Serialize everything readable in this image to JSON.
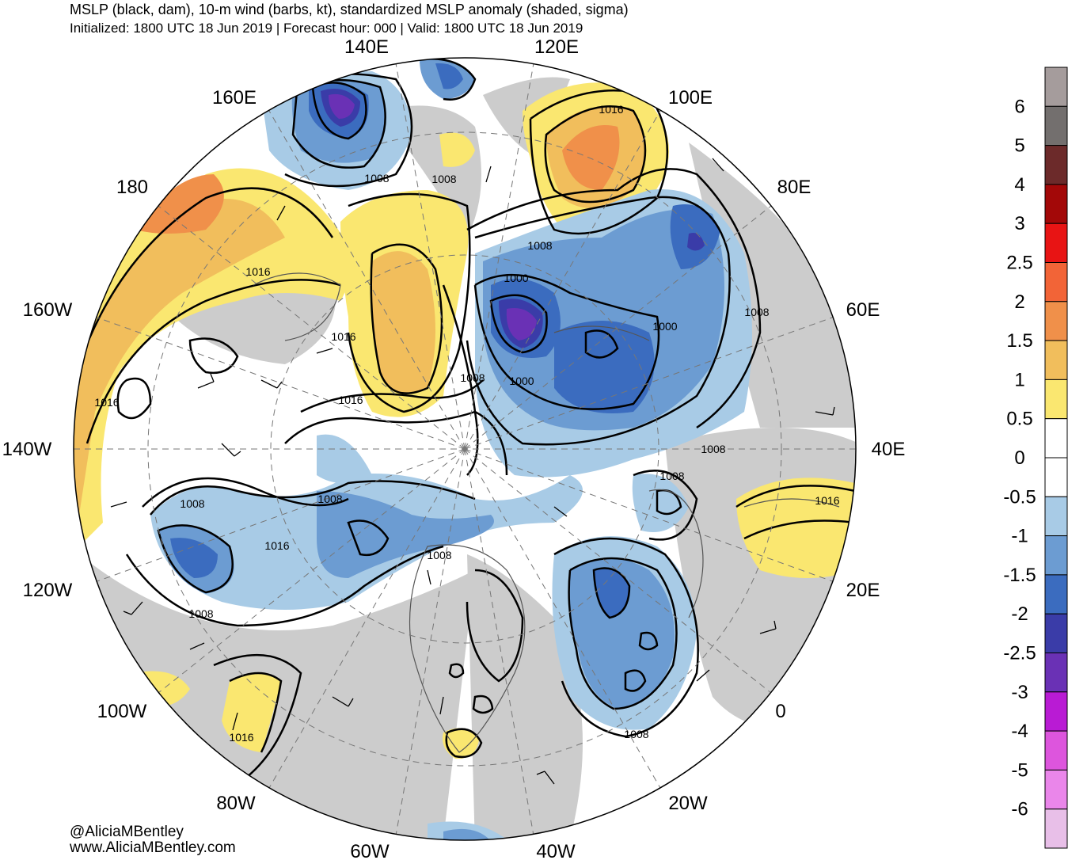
{
  "title": {
    "line1": "MSLP (black, dam), 10-m wind (barbs, kt), standardized MSLP anomaly (shaded, sigma)",
    "line2": "Initialized: 1800 UTC 18 Jun 2019 | Forecast hour: 000 | Valid: 1800 UTC 18 Jun 2019"
  },
  "credits": {
    "twitter": "@AliciaMBentley",
    "website": "www.AliciaMBentley.com"
  },
  "longitude_labels": [
    "140E",
    "120E",
    "160E",
    "100E",
    "180",
    "80E",
    "160W",
    "60E",
    "140W",
    "40E",
    "120W",
    "20E",
    "100W",
    "0",
    "80W",
    "20W",
    "60W",
    "40W"
  ],
  "isobar_labels": [
    "1008",
    "1008",
    "1016",
    "1008",
    "1000",
    "1016",
    "1016",
    "1008",
    "1000",
    "1008",
    "1016",
    "1016",
    "1000",
    "1008",
    "1008",
    "1008",
    "1016",
    "1008",
    "1008",
    "1008",
    "1016",
    "1008",
    "1016"
  ],
  "colorbar": {
    "labels": [
      "6",
      "5",
      "4",
      "3",
      "2.5",
      "2",
      "1.5",
      "1",
      "0.5",
      "0",
      "-0.5",
      "-1",
      "-1.5",
      "-2",
      "-2.5",
      "-3",
      "-4",
      "-5",
      "-6"
    ],
    "colors": [
      "#a59c9c",
      "#736f6e",
      "#6c2a2a",
      "#a30808",
      "#e81414",
      "#f26437",
      "#f0904a",
      "#f1be5c",
      "#fae770",
      "#ffffff",
      "#ffffff",
      "#a8cbe6",
      "#6c9cd2",
      "#3b6cbf",
      "#3a3ca8",
      "#6a31b5",
      "#b91bd4",
      "#dd55dd",
      "#ea86ea",
      "#e8bfe8"
    ]
  }
}
